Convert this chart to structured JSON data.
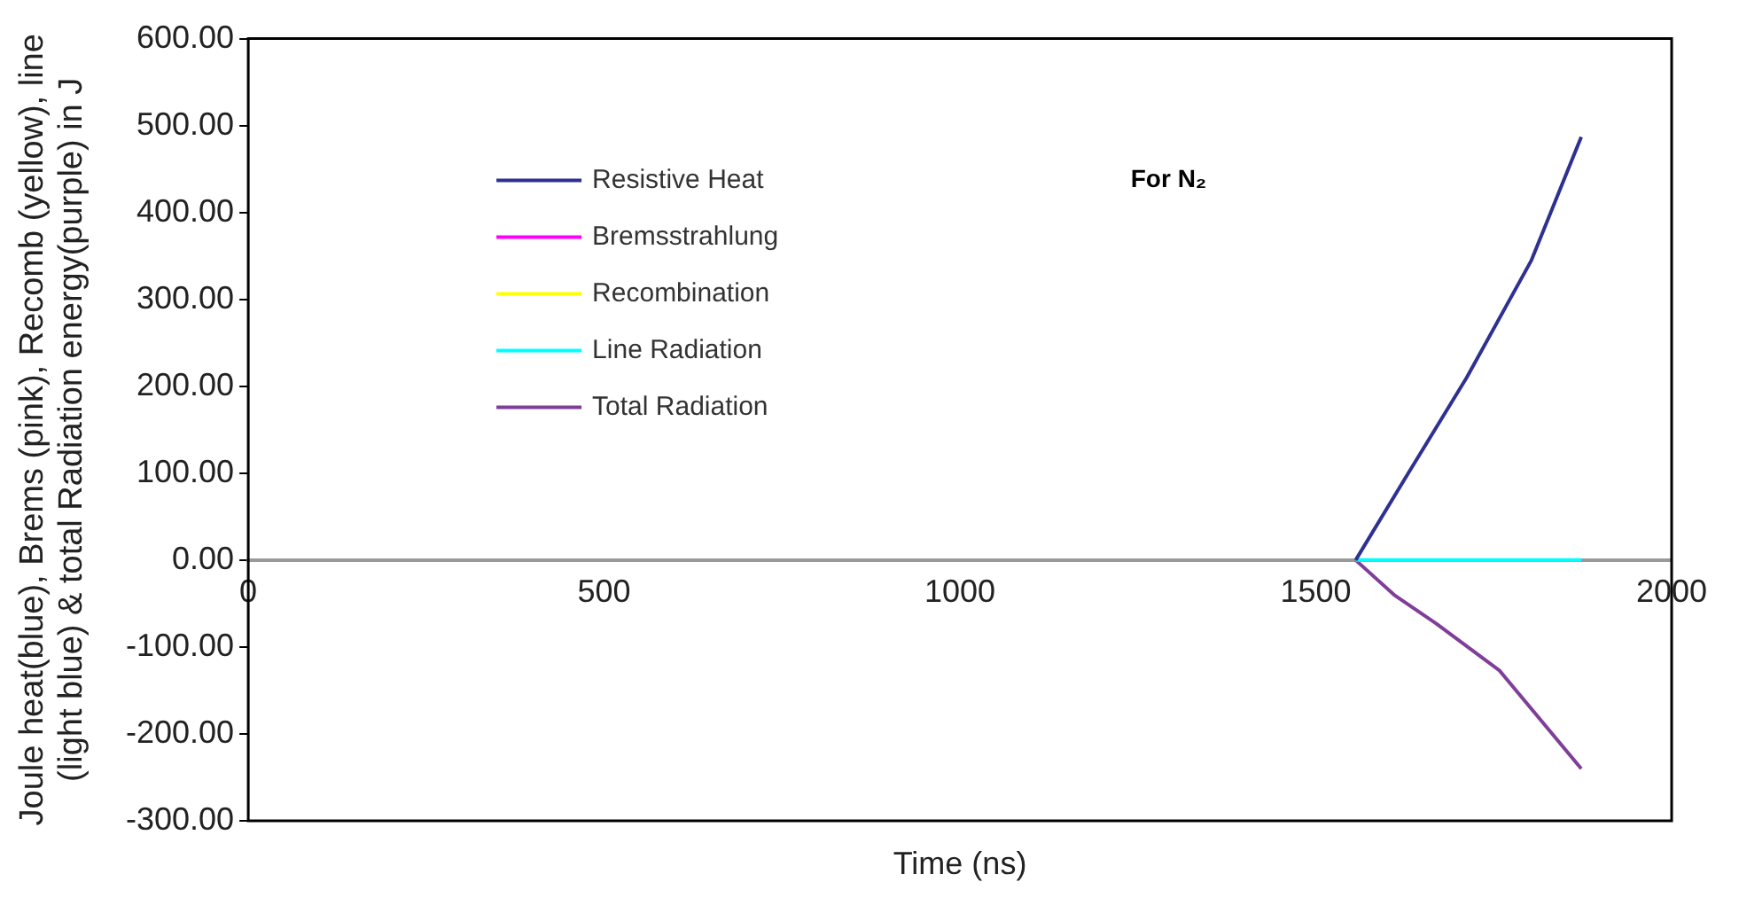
{
  "chart_data": {
    "type": "line",
    "xlabel": "Time (ns)",
    "ylabel": "Joule heat(blue), Brems (pink), Recomb (yellow), line (light blue) & total Radiation energy(purple) in J",
    "xlim": [
      0,
      2000
    ],
    "xticks": [
      0,
      500,
      1000,
      1500,
      2000
    ],
    "ylim": [
      -300,
      600
    ],
    "yticks": [
      {
        "value": -300,
        "label": "-300.00"
      },
      {
        "value": -200,
        "label": "-200.00"
      },
      {
        "value": -100,
        "label": "-100.00"
      },
      {
        "value": 0,
        "label": "0.00"
      },
      {
        "value": 100,
        "label": "100.00"
      },
      {
        "value": 200,
        "label": "200.00"
      },
      {
        "value": 300,
        "label": "300.00"
      },
      {
        "value": 400,
        "label": "400.00"
      },
      {
        "value": 500,
        "label": "500.00"
      },
      {
        "value": 600,
        "label": "600.00"
      }
    ],
    "grid": false,
    "legend": "top left",
    "marker": "none",
    "line_style": "solid",
    "annotations": [
      "For N₂"
    ],
    "series": [
      {
        "name": "Resistive Heat",
        "color": "#2e3192",
        "x": [
          1556,
          1630,
          1712,
          1803,
          1873
        ],
        "values": [
          0,
          100,
          210,
          345,
          487
        ]
      },
      {
        "name": "Bremsstrahlung",
        "color": "#ff00ff"
      },
      {
        "name": "Recombination",
        "color": "#ffff00"
      },
      {
        "name": "Line Radiation",
        "color": "#00ffff",
        "x": [
          1556,
          1873
        ],
        "values": [
          0,
          0
        ]
      },
      {
        "name": "Total Radiation",
        "color": "#7f3f98",
        "x": [
          1556,
          1610,
          1669,
          1758,
          1873
        ],
        "values": [
          0,
          -40,
          -73,
          -127,
          -240
        ]
      }
    ]
  }
}
